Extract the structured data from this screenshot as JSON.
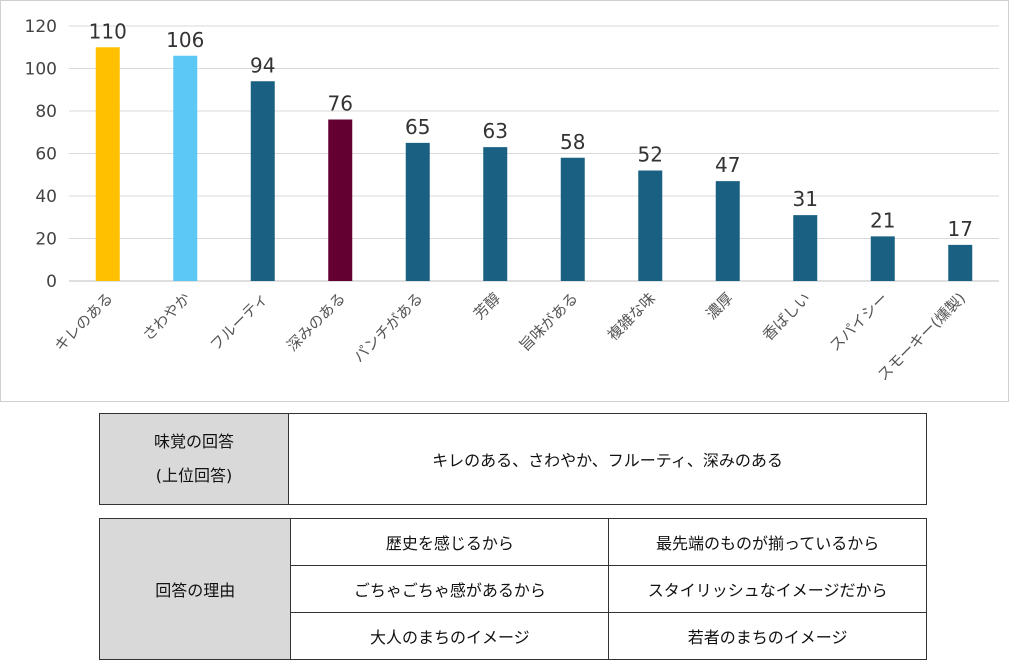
{
  "chart_data": {
    "type": "bar",
    "categories": [
      "キレのある",
      "さわやか",
      "フルーティ",
      "深みのある",
      "パンチがある",
      "芳醇",
      "旨味がある",
      "複雑な味",
      "濃厚",
      "香ばしい",
      "スパイシー",
      "スモーキー(燻製)"
    ],
    "values": [
      110,
      106,
      94,
      76,
      65,
      63,
      58,
      52,
      47,
      31,
      21,
      17
    ],
    "bar_colors": [
      "#FFC000",
      "#5BC8F5",
      "#1A6083",
      "#630031",
      "#1A6083",
      "#1A6083",
      "#1A6083",
      "#1A6083",
      "#1A6083",
      "#1A6083",
      "#1A6083",
      "#1A6083"
    ],
    "yticks": [
      0,
      20,
      40,
      60,
      80,
      100,
      120
    ],
    "ylim": [
      0,
      120
    ],
    "title": "",
    "xlabel": "",
    "ylabel": "",
    "grid": true,
    "legend": "none"
  },
  "summary_table": {
    "header_line1": "味覚の回答",
    "header_line2": "(上位回答)",
    "value": "キレのある、さわやか、フルーティ、深みのある"
  },
  "reasons_table": {
    "header": "回答の理由",
    "rows": [
      [
        "歴史を感じるから",
        "最先端のものが揃っているから"
      ],
      [
        "ごちゃごちゃ感があるから",
        "スタイリッシュなイメージだから"
      ],
      [
        "大人のまちのイメージ",
        "若者のまちのイメージ"
      ]
    ]
  }
}
